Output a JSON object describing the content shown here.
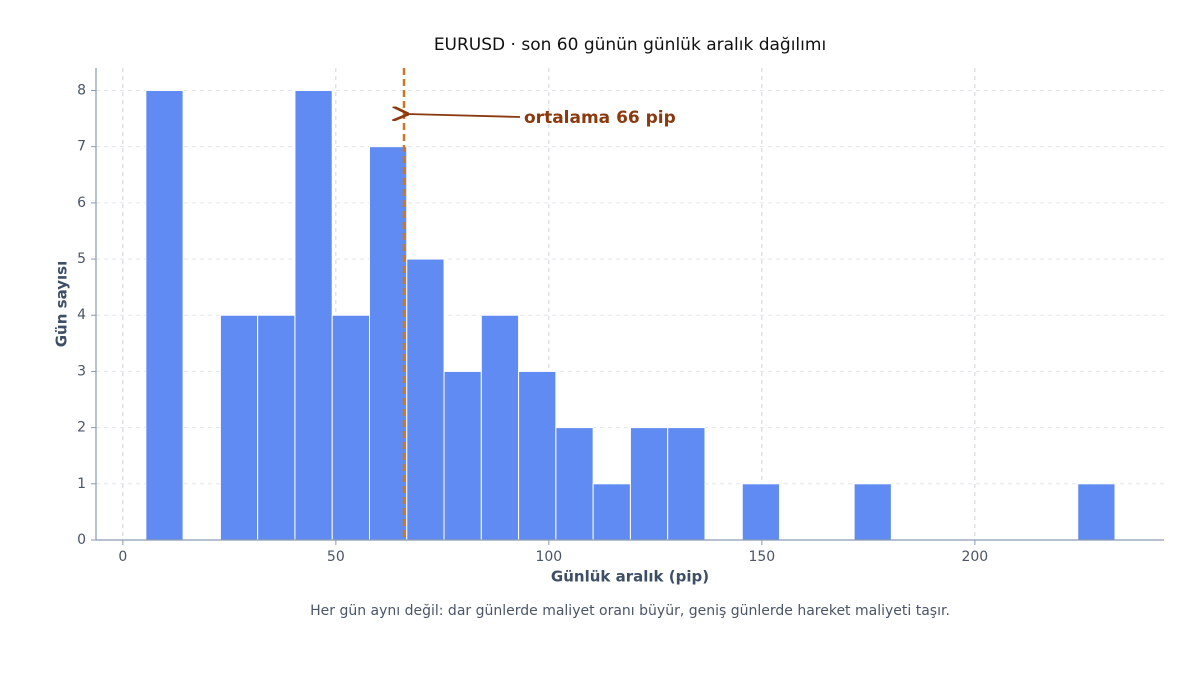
{
  "chart_data": {
    "type": "histogram",
    "title": "EURUSD · son 60 günün günlük aralık dağılımı",
    "xlabel": "Günlük aralık (pip)",
    "ylabel": "Gün sayısı",
    "caption": "Her gün aynı değil: dar günlerde maliyet oranı büyür, geniş günlerde hareket maliyeti taşır.",
    "bins": [
      5.4,
      14.15,
      22.9,
      31.65,
      40.4,
      49.15,
      57.9,
      66.65,
      75.4,
      84.15,
      92.9,
      101.65,
      110.4,
      119.15,
      127.9,
      136.65,
      145.4,
      154.15,
      162.9,
      171.65,
      180.4,
      189.15,
      197.9,
      206.65,
      215.4,
      224.15,
      232.9
    ],
    "counts": [
      8,
      0,
      4,
      4,
      8,
      4,
      7,
      5,
      3,
      4,
      3,
      2,
      1,
      2,
      2,
      0,
      1,
      0,
      0,
      1,
      0,
      0,
      0,
      0,
      0,
      1
    ],
    "color": "#5b87f2",
    "mean": 66,
    "mean_color": "#cc7722",
    "annotation": "ortalama 66 pip",
    "xlim": [
      -6.3,
      244.4
    ],
    "ylim": [
      0,
      8.4
    ],
    "xticks": [
      0,
      50,
      100,
      150,
      200
    ],
    "yticks": [
      0,
      1,
      2,
      3,
      4,
      5,
      6,
      7,
      8
    ],
    "grid": true
  }
}
